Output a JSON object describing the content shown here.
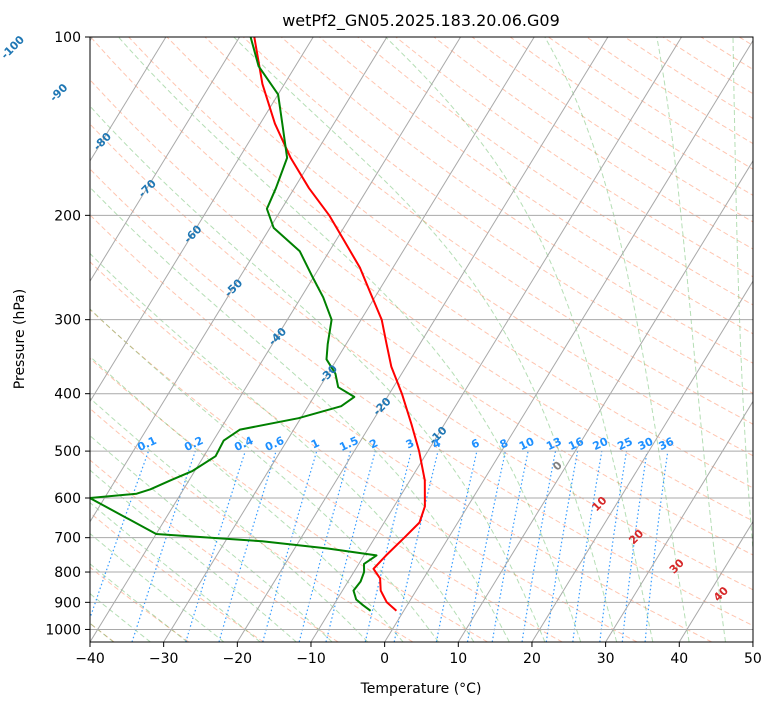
{
  "chart_data": {
    "type": "line",
    "title": "wetPf2_GN05.2025.183.20.06.G09",
    "xlabel": "Temperature (°C)",
    "ylabel": "Pressure (hPa)",
    "xlim": [
      -40,
      50
    ],
    "ylim": [
      1050,
      100
    ],
    "y_scale": "log",
    "x_ticks": [
      -40,
      -30,
      -20,
      -10,
      0,
      10,
      20,
      30,
      40,
      50
    ],
    "x_tick_labels": [
      "−40",
      "−30",
      "−20",
      "−10",
      "0",
      "10",
      "20",
      "30",
      "40",
      "50"
    ],
    "y_ticks": [
      100,
      200,
      300,
      400,
      500,
      600,
      700,
      800,
      900,
      1000
    ],
    "y_tick_labels": [
      "100",
      "200",
      "300",
      "400",
      "500",
      "600",
      "700",
      "800",
      "900",
      "1000"
    ],
    "grid": true,
    "skew": "skew-T log-p",
    "series": [
      {
        "role": "temperature",
        "color": "#ff0000",
        "points": [
          {
            "p": 930,
            "t": -1.0
          },
          {
            "p": 900,
            "t": -3.0
          },
          {
            "p": 860,
            "t": -4.8
          },
          {
            "p": 820,
            "t": -5.9
          },
          {
            "p": 790,
            "t": -7.6
          },
          {
            "p": 750,
            "t": -7.0
          },
          {
            "p": 700,
            "t": -6.0
          },
          {
            "p": 660,
            "t": -5.2
          },
          {
            "p": 620,
            "t": -5.8
          },
          {
            "p": 560,
            "t": -8.0
          },
          {
            "p": 500,
            "t": -11.2
          },
          {
            "p": 450,
            "t": -14.5
          },
          {
            "p": 400,
            "t": -18.3
          },
          {
            "p": 360,
            "t": -22.0
          },
          {
            "p": 330,
            "t": -24.5
          },
          {
            "p": 300,
            "t": -27.2
          },
          {
            "p": 270,
            "t": -31.0
          },
          {
            "p": 245,
            "t": -34.5
          },
          {
            "p": 220,
            "t": -39.0
          },
          {
            "p": 200,
            "t": -43.0
          },
          {
            "p": 180,
            "t": -48.0
          },
          {
            "p": 160,
            "t": -53.0
          },
          {
            "p": 140,
            "t": -58.0
          },
          {
            "p": 120,
            "t": -63.0
          },
          {
            "p": 100,
            "t": -68.0
          }
        ]
      },
      {
        "role": "dewpoint",
        "color": "#008000",
        "points": [
          {
            "p": 930,
            "t": -4.5
          },
          {
            "p": 910,
            "t": -6.0
          },
          {
            "p": 890,
            "t": -7.4
          },
          {
            "p": 860,
            "t": -8.5
          },
          {
            "p": 830,
            "t": -8.3
          },
          {
            "p": 800,
            "t": -8.6
          },
          {
            "p": 775,
            "t": -9.3
          },
          {
            "p": 750,
            "t": -8.3
          },
          {
            "p": 730,
            "t": -15.5
          },
          {
            "p": 710,
            "t": -25.0
          },
          {
            "p": 690,
            "t": -40.0
          },
          {
            "p": 600,
            "t": -52.0
          },
          {
            "p": 590,
            "t": -46.0
          },
          {
            "p": 580,
            "t": -44.5
          },
          {
            "p": 560,
            "t": -42.5
          },
          {
            "p": 540,
            "t": -40.3
          },
          {
            "p": 510,
            "t": -38.4
          },
          {
            "p": 480,
            "t": -38.6
          },
          {
            "p": 460,
            "t": -37.3
          },
          {
            "p": 440,
            "t": -30.3
          },
          {
            "p": 420,
            "t": -25.5
          },
          {
            "p": 405,
            "t": -24.5
          },
          {
            "p": 390,
            "t": -27.5
          },
          {
            "p": 370,
            "t": -29.0
          },
          {
            "p": 350,
            "t": -31.4
          },
          {
            "p": 330,
            "t": -32.5
          },
          {
            "p": 300,
            "t": -34.0
          },
          {
            "p": 275,
            "t": -37.0
          },
          {
            "p": 255,
            "t": -40.0
          },
          {
            "p": 230,
            "t": -44.0
          },
          {
            "p": 210,
            "t": -49.5
          },
          {
            "p": 195,
            "t": -52.0
          },
          {
            "p": 180,
            "t": -52.5
          },
          {
            "p": 160,
            "t": -53.5
          },
          {
            "p": 140,
            "t": -57.0
          },
          {
            "p": 125,
            "t": -60.0
          },
          {
            "p": 112,
            "t": -65.0
          },
          {
            "p": 100,
            "t": -68.5
          }
        ]
      }
    ],
    "isotherm_labels": [
      "-100",
      "-90",
      "-80",
      "-70",
      "-60",
      "-50",
      "-40",
      "-30",
      "-20",
      "-10"
    ],
    "mixing_ratio_labels": [
      "0.1",
      "0.2",
      "0.4",
      "0.6",
      "1",
      "1.5",
      "2",
      "3",
      "4",
      "6",
      "8",
      "10",
      "13",
      "16",
      "20",
      "25",
      "30",
      "36"
    ],
    "moist_adiabat_labels": [
      "0",
      "10",
      "20",
      "30",
      "40"
    ],
    "colors": {
      "isotherm_label": "#1f77b4",
      "mixing_ratio": "#1e90ff",
      "dry_adiabat": "#ff7f50",
      "moist_adiabat": "#2ca02c",
      "moist_label": "#d62728",
      "moist_label_zero": "#808080",
      "skewed_grid": "#a9a9a9",
      "pressure_grid": "#a9a9a9"
    }
  }
}
